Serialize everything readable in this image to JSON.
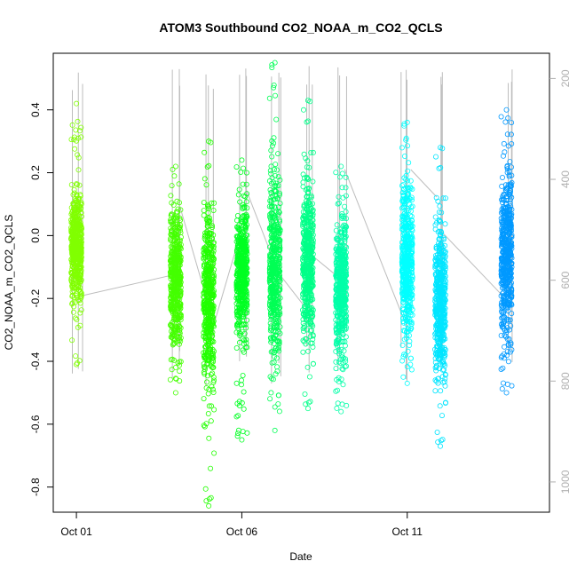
{
  "chart_data": {
    "type": "scatter",
    "title": "ATOM3 Southbound CO2_NOAA_m_CO2_QCLS",
    "xlabel": "Date",
    "ylabel": "CO2_NOAA_m_CO2_QCLS",
    "x_ticks": [
      "Oct 01",
      "Oct 06",
      "Oct 11"
    ],
    "y_ticks": [
      "-0.8",
      "-0.6",
      "-0.4",
      "-0.2",
      "0.0",
      "0.2",
      "0.4"
    ],
    "y_right_ticks": [
      "200",
      "400",
      "600",
      "800",
      "1000"
    ],
    "y_right_label": "",
    "ylim": [
      -0.88,
      0.58
    ],
    "y_right_lim": [
      1060,
      150
    ],
    "xlim_days": [
      0.3,
      15.3
    ],
    "grid": false,
    "legend": "none",
    "series": [
      {
        "date": "Oct 01",
        "color": "#80ff00",
        "y_min": -0.41,
        "y_max": 0.42,
        "ybulk": [
          -0.28,
          0.2
        ]
      },
      {
        "date": "Oct 04",
        "color": "#44ff00",
        "y_min": -0.5,
        "y_max": 0.22,
        "ybulk": [
          -0.45,
          0.2
        ]
      },
      {
        "date": "Oct 05",
        "color": "#22ff00",
        "y_min": -0.86,
        "y_max": 0.3,
        "ybulk": [
          -0.64,
          0.25
        ]
      },
      {
        "date": "Oct 06",
        "color": "#00ff22",
        "y_min": -0.65,
        "y_max": 0.24,
        "ybulk": [
          -0.45,
          0.22
        ]
      },
      {
        "date": "Oct 07",
        "color": "#00ff55",
        "y_min": -0.62,
        "y_max": 0.55,
        "ybulk": [
          -0.55,
          0.35
        ]
      },
      {
        "date": "Oct 08",
        "color": "#00ff88",
        "y_min": -0.55,
        "y_max": 0.43,
        "ybulk": [
          -0.48,
          0.32
        ]
      },
      {
        "date": "Oct 09",
        "color": "#00ffa8",
        "y_min": -0.56,
        "y_max": 0.22,
        "ybulk": [
          -0.52,
          0.2
        ]
      },
      {
        "date": "Oct 11",
        "color": "#00ffff",
        "y_min": -0.47,
        "y_max": 0.36,
        "ybulk": [
          -0.45,
          0.3
        ]
      },
      {
        "date": "Oct 12",
        "color": "#00e5ff",
        "y_min": -0.67,
        "y_max": 0.28,
        "ybulk": [
          -0.6,
          0.18
        ]
      },
      {
        "date": "Oct 14",
        "color": "#0099ff",
        "y_min": -0.5,
        "y_max": 0.4,
        "ybulk": [
          -0.5,
          0.38
        ]
      }
    ]
  }
}
